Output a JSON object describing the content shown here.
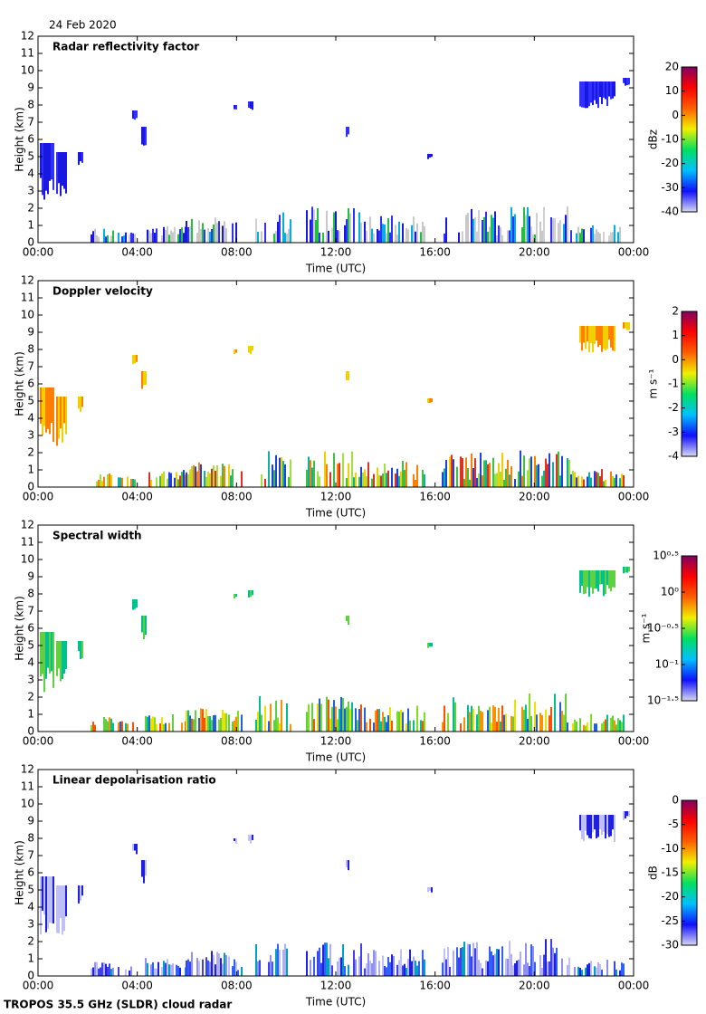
{
  "date": "24 Feb 2020",
  "footer": "TROPOS 35.5 GHz (SLDR) cloud radar",
  "chart_data": [
    {
      "type": "heatmap",
      "title": "Radar reflectivity factor",
      "xlabel": "Time (UTC)",
      "ylabel": "Height (km)",
      "xlim": [
        0,
        24
      ],
      "xticks": [
        {
          "value": 0,
          "label": "00:00"
        },
        {
          "value": 4,
          "label": "04:00"
        },
        {
          "value": 8,
          "label": "08:00"
        },
        {
          "value": 12,
          "label": "12:00"
        },
        {
          "value": 16,
          "label": "16:00"
        },
        {
          "value": 20,
          "label": "20:00"
        },
        {
          "value": 24,
          "label": "00:00"
        }
      ],
      "ylim": [
        0,
        12
      ],
      "yticks": [
        0,
        1,
        2,
        3,
        4,
        5,
        6,
        7,
        8,
        9,
        10,
        11,
        12
      ],
      "colorbar": {
        "label": "dBz",
        "lim": [
          -40,
          20
        ],
        "ticks": [
          20,
          10,
          0,
          -10,
          -20,
          -30,
          -40
        ],
        "log": false,
        "colors": [
          "#d8d8f0",
          "#1010ff",
          "#00c0ff",
          "#00e060",
          "#f0f000",
          "#ff6000",
          "#ff0000",
          "#800060"
        ]
      }
    },
    {
      "type": "heatmap",
      "title": "Doppler velocity",
      "xlabel": "Time (UTC)",
      "ylabel": "Height (km)",
      "xlim": [
        0,
        24
      ],
      "xticks": [
        {
          "value": 0,
          "label": "00:00"
        },
        {
          "value": 4,
          "label": "04:00"
        },
        {
          "value": 8,
          "label": "08:00"
        },
        {
          "value": 12,
          "label": "12:00"
        },
        {
          "value": 16,
          "label": "16:00"
        },
        {
          "value": 20,
          "label": "20:00"
        },
        {
          "value": 24,
          "label": "00:00"
        }
      ],
      "ylim": [
        0,
        12
      ],
      "yticks": [
        0,
        1,
        2,
        3,
        4,
        5,
        6,
        7,
        8,
        9,
        10,
        11,
        12
      ],
      "colorbar": {
        "label": "m s⁻¹",
        "lim": [
          -4,
          2
        ],
        "ticks": [
          2,
          1,
          0,
          -1,
          -2,
          -3,
          -4
        ],
        "log": false,
        "colors": [
          "#d8d8f0",
          "#1010ff",
          "#00c0ff",
          "#00e060",
          "#f0f000",
          "#ff6000",
          "#ff0000",
          "#800060"
        ]
      }
    },
    {
      "type": "heatmap",
      "title": "Spectral width",
      "xlabel": "Time (UTC)",
      "ylabel": "Height (km)",
      "xlim": [
        0,
        24
      ],
      "xticks": [
        {
          "value": 0,
          "label": "00:00"
        },
        {
          "value": 4,
          "label": "04:00"
        },
        {
          "value": 8,
          "label": "08:00"
        },
        {
          "value": 12,
          "label": "12:00"
        },
        {
          "value": 16,
          "label": "16:00"
        },
        {
          "value": 20,
          "label": "20:00"
        },
        {
          "value": 24,
          "label": "00:00"
        }
      ],
      "ylim": [
        0,
        12
      ],
      "yticks": [
        0,
        1,
        2,
        3,
        4,
        5,
        6,
        7,
        8,
        9,
        10,
        11,
        12
      ],
      "colorbar": {
        "label": "m s⁻¹",
        "lim": [
          0.031623,
          3.1623
        ],
        "log": true,
        "ticks": [
          {
            "value": 3.1623,
            "label": "10⁰·⁵"
          },
          {
            "value": 1,
            "label": "10⁰"
          },
          {
            "value": 0.31623,
            "label": "10⁻⁰·⁵"
          },
          {
            "value": 0.1,
            "label": "10⁻¹"
          },
          {
            "value": 0.031623,
            "label": "10⁻¹·⁵"
          }
        ],
        "colors": [
          "#d8d8f0",
          "#1010ff",
          "#00c0ff",
          "#00e060",
          "#f0f000",
          "#ff6000",
          "#ff0000",
          "#800060"
        ]
      }
    },
    {
      "type": "heatmap",
      "title": "Linear depolarisation ratio",
      "xlabel": "Time (UTC)",
      "ylabel": "Height (km)",
      "xlim": [
        0,
        24
      ],
      "xticks": [
        {
          "value": 0,
          "label": "00:00"
        },
        {
          "value": 4,
          "label": "04:00"
        },
        {
          "value": 8,
          "label": "08:00"
        },
        {
          "value": 12,
          "label": "12:00"
        },
        {
          "value": 16,
          "label": "16:00"
        },
        {
          "value": 20,
          "label": "20:00"
        },
        {
          "value": 24,
          "label": "00:00"
        }
      ],
      "ylim": [
        0,
        12
      ],
      "yticks": [
        0,
        1,
        2,
        3,
        4,
        5,
        6,
        7,
        8,
        9,
        10,
        11,
        12
      ],
      "colorbar": {
        "label": "dB",
        "lim": [
          -30,
          0
        ],
        "ticks": [
          0,
          -5,
          -10,
          -15,
          -20,
          -25,
          -30
        ],
        "log": false,
        "colors": [
          "#d8d8f0",
          "#1010ff",
          "#00c0ff",
          "#00e060",
          "#f0f000",
          "#ff6000",
          "#ff0000",
          "#800060"
        ]
      }
    }
  ]
}
